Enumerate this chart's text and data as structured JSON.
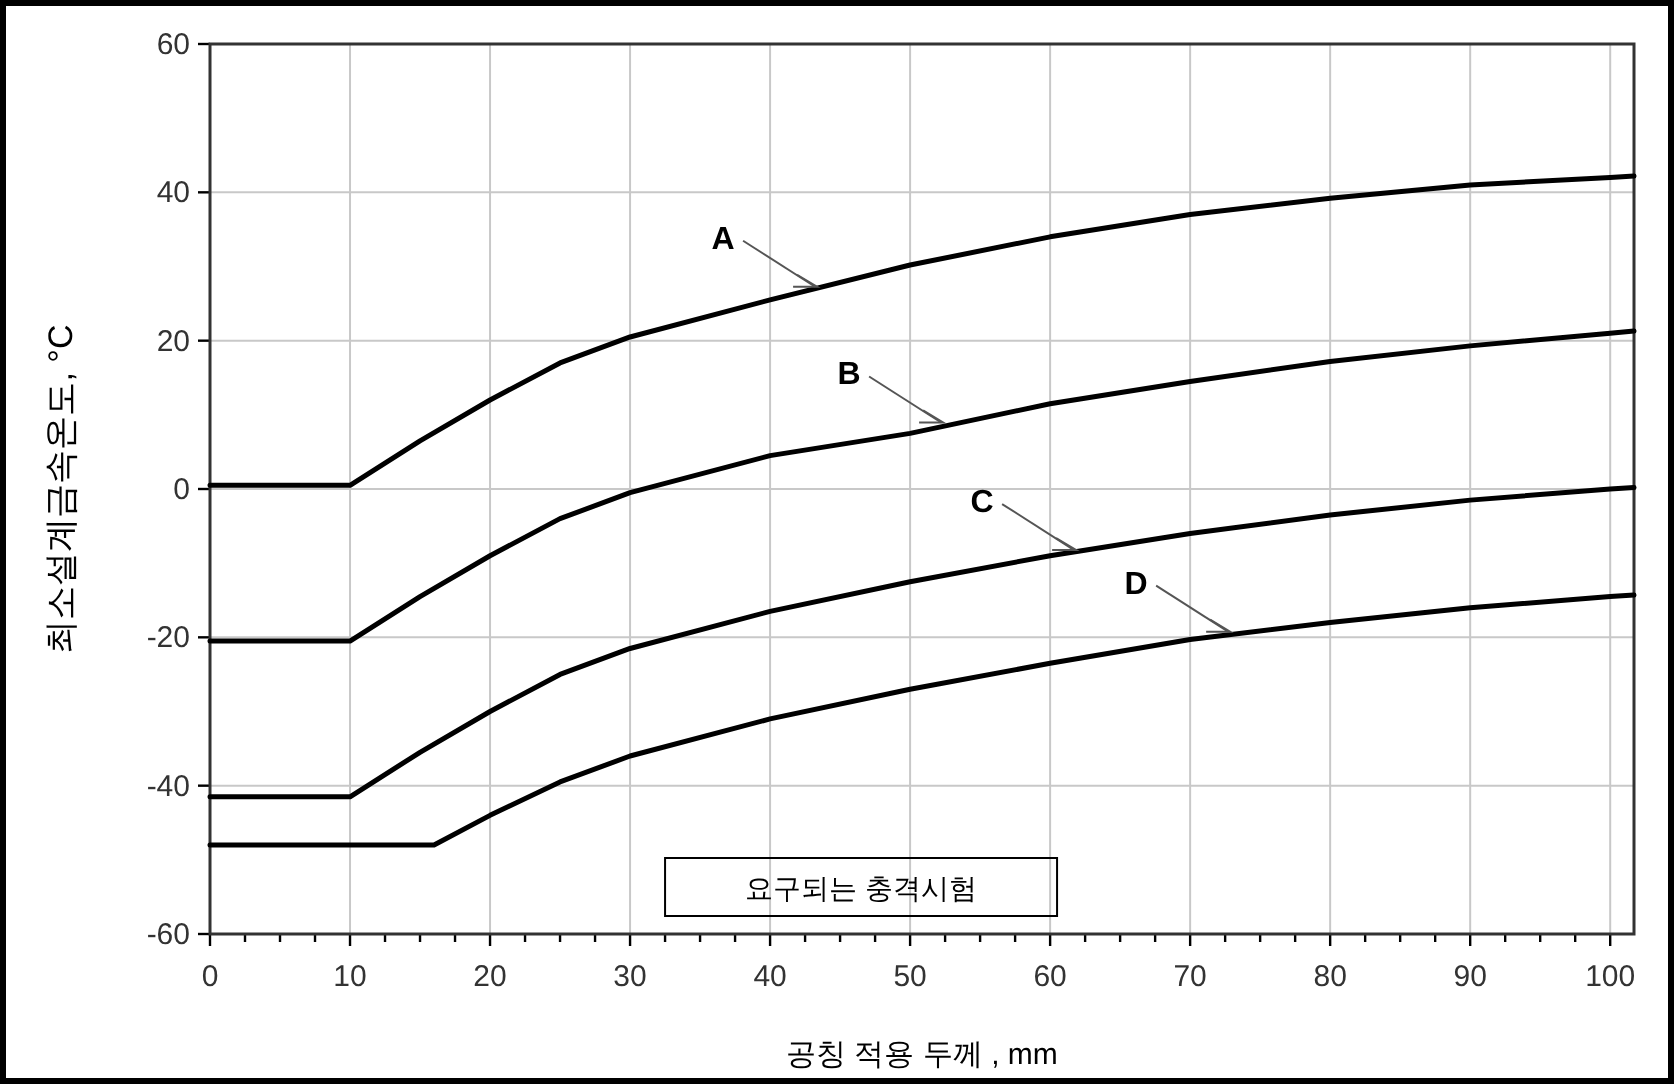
{
  "chart_data": {
    "type": "line",
    "xlabel": "공칭 적용 두께 , mm",
    "ylabel": "최소설계금속온도, °C",
    "xlim": [
      0,
      101.7
    ],
    "ylim": [
      -60,
      60
    ],
    "xticks": [
      0,
      {
        "value": 2.5,
        "label": null
      },
      {
        "value": 5,
        "label": null
      },
      {
        "value": 7.5,
        "label": null
      },
      10,
      {
        "value": 12.5,
        "label": null
      },
      {
        "value": 15,
        "label": null
      },
      {
        "value": 17.5,
        "label": null
      },
      20,
      {
        "value": 22.5,
        "label": null
      },
      {
        "value": 25,
        "label": null
      },
      {
        "value": 27.5,
        "label": null
      },
      30,
      {
        "value": 32.5,
        "label": null
      },
      {
        "value": 35,
        "label": null
      },
      {
        "value": 37.5,
        "label": null
      },
      40,
      {
        "value": 42.5,
        "label": null
      },
      {
        "value": 45,
        "label": null
      },
      {
        "value": 47.5,
        "label": null
      },
      50,
      {
        "value": 52.5,
        "label": null
      },
      {
        "value": 55,
        "label": null
      },
      {
        "value": 57.5,
        "label": null
      },
      60,
      {
        "value": 62.5,
        "label": null
      },
      {
        "value": 65,
        "label": null
      },
      {
        "value": 67.5,
        "label": null
      },
      70,
      {
        "value": 72.5,
        "label": null
      },
      {
        "value": 75,
        "label": null
      },
      {
        "value": 77.5,
        "label": null
      },
      80,
      {
        "value": 82.5,
        "label": null
      },
      {
        "value": 85,
        "label": null
      },
      {
        "value": 87.5,
        "label": null
      },
      90,
      {
        "value": 92.5,
        "label": null
      },
      {
        "value": 95,
        "label": null
      },
      {
        "value": 97.5,
        "label": null
      },
      100
    ],
    "yticks": [
      -60,
      -40,
      -20,
      0,
      20,
      40,
      60
    ],
    "grid": true,
    "series": [
      {
        "color": "#000000",
        "x": [
          0,
          10,
          15,
          20,
          25,
          30,
          40,
          50,
          60,
          70,
          80,
          90,
          100,
          101.7
        ],
        "values": [
          0.5,
          0.5,
          6.5,
          12,
          17,
          20.5,
          25.5,
          30.2,
          34,
          37,
          39.2,
          41,
          42,
          42.2
        ]
      },
      {
        "color": "#000000",
        "x": [
          0,
          10,
          15,
          20,
          25,
          30,
          40,
          50,
          60,
          70,
          80,
          90,
          100,
          101.7
        ],
        "values": [
          -20.5,
          -20.5,
          -14.5,
          -9,
          -4,
          -0.5,
          4.5,
          7.5,
          11.5,
          14.5,
          17.2,
          19.3,
          21,
          21.3
        ]
      },
      {
        "color": "#000000",
        "x": [
          0,
          10,
          15,
          20,
          25,
          30,
          40,
          50,
          60,
          70,
          80,
          90,
          100,
          101.7
        ],
        "values": [
          -41.5,
          -41.5,
          -35.5,
          -30,
          -25,
          -21.5,
          -16.5,
          -12.5,
          -9,
          -6,
          -3.5,
          -1.5,
          0,
          0.2
        ]
      },
      {
        "color": "#000000",
        "x": [
          0,
          16,
          20,
          25,
          30,
          40,
          50,
          60,
          70,
          80,
          90,
          100,
          101.7
        ],
        "values": [
          -48,
          -48,
          -44,
          -39.5,
          -36,
          -31,
          -27,
          -23.5,
          -20.3,
          -18,
          -16,
          -14.5,
          -14.3
        ]
      }
    ],
    "annotations": [
      {
        "text": "A",
        "x": 43.5,
        "y": 27
      },
      {
        "text": "B",
        "x": 52.5,
        "y": 8.7
      },
      {
        "text": "C",
        "x": 62,
        "y": -8.5
      },
      {
        "text": "D",
        "x": 73,
        "y": -19.5
      },
      "요구되는 충격시험"
    ]
  }
}
